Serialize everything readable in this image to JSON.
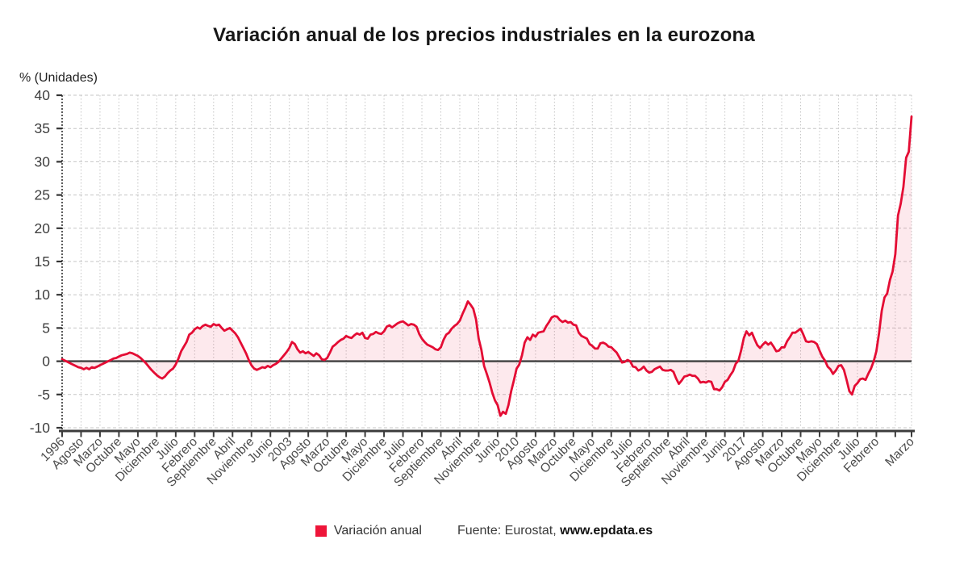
{
  "header": {
    "title": "Variación anual de los precios industriales en la eurozona"
  },
  "axis": {
    "y_title": "% (Unidades)"
  },
  "legend": {
    "series_label": "Variación anual"
  },
  "source": {
    "prefix": "Fuente: Eurostat,",
    "site": "www.epdata.es"
  },
  "colors": {
    "line": "#e40c34",
    "legend_square": "#ee1539",
    "fill": "#e40c34",
    "fill_opacity": 0.09,
    "grid": "#c6c6c6",
    "axis_dark": "#3c3c3c",
    "tick_text": "#4c4c4c"
  },
  "chart_data": {
    "type": "area",
    "title": "Variación anual de los precios industriales en la eurozona",
    "xlabel": "",
    "ylabel": "% (Unidades)",
    "ylim": [
      -10,
      40
    ],
    "y_tick_step": 5,
    "grid": true,
    "legend_position": "bottom",
    "frequency": "monthly",
    "x_start": "Enero 1996",
    "x_end": "Marzo 2022",
    "y_tick_labels": [
      "40",
      "35",
      "30",
      "25",
      "20",
      "15",
      "10",
      "5",
      "0",
      "-5",
      "-10"
    ],
    "x_tick_labels": [
      {
        "m": 0,
        "t": "1996"
      },
      {
        "m": 7,
        "t": "Agosto"
      },
      {
        "m": 14,
        "t": "Marzo"
      },
      {
        "m": 21,
        "t": "Octubre"
      },
      {
        "m": 28,
        "t": "Mayo"
      },
      {
        "m": 35,
        "t": "Diciembre"
      },
      {
        "m": 42,
        "t": "Julio"
      },
      {
        "m": 49,
        "t": "Febrero"
      },
      {
        "m": 56,
        "t": "Septiembre"
      },
      {
        "m": 63,
        "t": "Abril"
      },
      {
        "m": 70,
        "t": "Noviembre"
      },
      {
        "m": 77,
        "t": "Junio"
      },
      {
        "m": 84,
        "t": "2003"
      },
      {
        "m": 91,
        "t": "Agosto"
      },
      {
        "m": 98,
        "t": "Marzo"
      },
      {
        "m": 105,
        "t": "Octubre"
      },
      {
        "m": 112,
        "t": "Mayo"
      },
      {
        "m": 119,
        "t": "Diciembre"
      },
      {
        "m": 126,
        "t": "Julio"
      },
      {
        "m": 133,
        "t": "Febrero"
      },
      {
        "m": 140,
        "t": "Septiembre"
      },
      {
        "m": 147,
        "t": "Abril"
      },
      {
        "m": 154,
        "t": "Noviembre"
      },
      {
        "m": 161,
        "t": "Junio"
      },
      {
        "m": 168,
        "t": "2010"
      },
      {
        "m": 175,
        "t": "Agosto"
      },
      {
        "m": 182,
        "t": "Marzo"
      },
      {
        "m": 189,
        "t": "Octubre"
      },
      {
        "m": 196,
        "t": "Mayo"
      },
      {
        "m": 203,
        "t": "Diciembre"
      },
      {
        "m": 210,
        "t": "Julio"
      },
      {
        "m": 217,
        "t": "Febrero"
      },
      {
        "m": 224,
        "t": "Septiembre"
      },
      {
        "m": 231,
        "t": "Abril"
      },
      {
        "m": 238,
        "t": "Noviembre"
      },
      {
        "m": 245,
        "t": "Junio"
      },
      {
        "m": 252,
        "t": "2017"
      },
      {
        "m": 259,
        "t": "Agosto"
      },
      {
        "m": 266,
        "t": "Marzo"
      },
      {
        "m": 273,
        "t": "Octubre"
      },
      {
        "m": 280,
        "t": "Mayo"
      },
      {
        "m": 287,
        "t": "Diciembre"
      },
      {
        "m": 294,
        "t": "Julio"
      },
      {
        "m": 301,
        "t": "Febrero"
      },
      {
        "m": 314,
        "t": "Marzo"
      }
    ],
    "series": [
      {
        "name": "Variación anual",
        "values": [
          0.3,
          0.1,
          -0.1,
          -0.3,
          -0.5,
          -0.7,
          -0.9,
          -1.0,
          -1.2,
          -1.0,
          -1.2,
          -0.9,
          -1.0,
          -0.8,
          -0.6,
          -0.4,
          -0.2,
          0.0,
          0.2,
          0.4,
          0.5,
          0.7,
          0.9,
          1.0,
          1.1,
          1.3,
          1.2,
          1.0,
          0.8,
          0.5,
          0.1,
          -0.3,
          -0.8,
          -1.3,
          -1.7,
          -2.1,
          -2.4,
          -2.6,
          -2.3,
          -1.8,
          -1.4,
          -1.1,
          -0.5,
          0.4,
          1.5,
          2.2,
          2.9,
          4.0,
          4.3,
          4.8,
          5.1,
          4.9,
          5.3,
          5.5,
          5.3,
          5.2,
          5.6,
          5.4,
          5.5,
          5.0,
          4.6,
          4.8,
          5.0,
          4.6,
          4.2,
          3.6,
          2.8,
          2.0,
          1.2,
          0.2,
          -0.6,
          -1.1,
          -1.3,
          -1.1,
          -0.9,
          -1.0,
          -0.7,
          -0.9,
          -0.6,
          -0.4,
          -0.1,
          0.4,
          0.9,
          1.4,
          2.0,
          2.9,
          2.6,
          1.8,
          1.3,
          1.5,
          1.2,
          1.4,
          1.1,
          0.8,
          1.2,
          0.9,
          0.3,
          0.2,
          0.5,
          1.3,
          2.2,
          2.5,
          2.9,
          3.2,
          3.4,
          3.8,
          3.6,
          3.5,
          3.9,
          4.2,
          4.0,
          4.3,
          3.5,
          3.4,
          4.0,
          4.1,
          4.4,
          4.2,
          4.1,
          4.5,
          5.2,
          5.4,
          5.1,
          5.4,
          5.7,
          5.9,
          6.0,
          5.7,
          5.4,
          5.6,
          5.5,
          5.2,
          4.1,
          3.4,
          2.9,
          2.5,
          2.3,
          2.1,
          1.8,
          1.7,
          2.1,
          3.2,
          4.0,
          4.3,
          4.9,
          5.3,
          5.6,
          6.1,
          7.1,
          8.0,
          9.0,
          8.5,
          7.9,
          6.3,
          3.4,
          1.7,
          -0.7,
          -1.9,
          -3.2,
          -4.7,
          -5.9,
          -6.6,
          -8.2,
          -7.6,
          -7.9,
          -6.6,
          -4.5,
          -2.9,
          -1.1,
          -0.5,
          0.9,
          2.8,
          3.6,
          3.2,
          4.0,
          3.7,
          4.3,
          4.4,
          4.5,
          5.3,
          5.9,
          6.6,
          6.8,
          6.7,
          6.2,
          5.9,
          6.1,
          5.8,
          5.9,
          5.5,
          5.4,
          4.3,
          3.8,
          3.6,
          3.4,
          2.6,
          2.3,
          1.9,
          1.9,
          2.7,
          2.8,
          2.6,
          2.2,
          2.1,
          1.7,
          1.3,
          0.6,
          -0.2,
          -0.1,
          0.2,
          0.0,
          -0.8,
          -0.9,
          -1.4,
          -1.2,
          -0.8,
          -1.4,
          -1.7,
          -1.6,
          -1.2,
          -1.0,
          -0.8,
          -1.3,
          -1.4,
          -1.4,
          -1.3,
          -1.6,
          -2.6,
          -3.4,
          -2.9,
          -2.3,
          -2.2,
          -2.0,
          -2.2,
          -2.2,
          -2.6,
          -3.2,
          -3.1,
          -3.2,
          -3.0,
          -3.1,
          -4.2,
          -4.2,
          -4.4,
          -3.9,
          -3.1,
          -2.8,
          -2.1,
          -1.5,
          -0.4,
          0.1,
          1.6,
          3.5,
          4.5,
          3.9,
          4.3,
          3.3,
          2.4,
          2.0,
          2.5,
          2.9,
          2.5,
          2.8,
          2.2,
          1.5,
          1.6,
          2.1,
          2.1,
          3.0,
          3.6,
          4.3,
          4.3,
          4.6,
          4.9,
          4.0,
          3.0,
          2.9,
          3.0,
          2.9,
          2.6,
          1.6,
          0.7,
          0.1,
          -0.8,
          -1.2,
          -1.9,
          -1.4,
          -0.7,
          -0.6,
          -1.3,
          -2.8,
          -4.5,
          -5.0,
          -3.7,
          -3.3,
          -2.7,
          -2.6,
          -2.8,
          -1.9,
          -1.1,
          0.0,
          1.5,
          4.3,
          7.6,
          9.6,
          10.2,
          12.2,
          13.5,
          16.1,
          21.9,
          23.7,
          26.2,
          30.6,
          31.5,
          36.8
        ]
      }
    ]
  }
}
